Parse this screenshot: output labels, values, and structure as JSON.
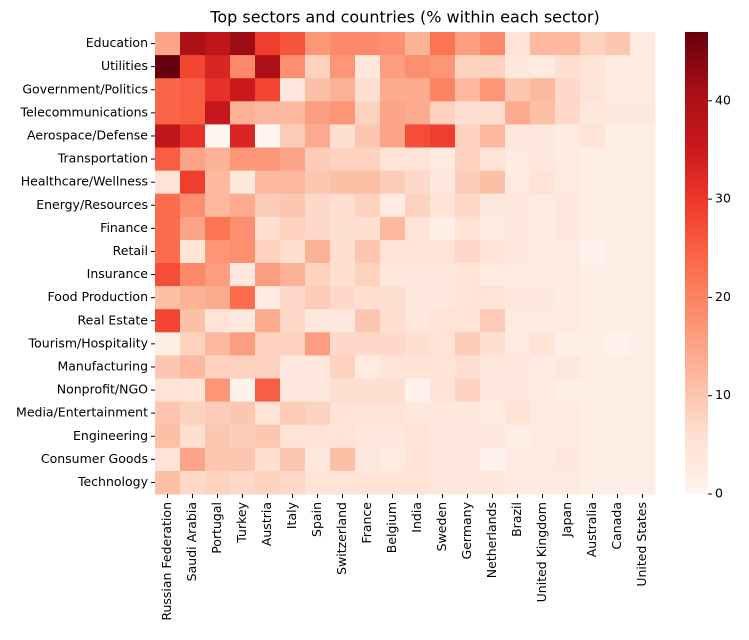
{
  "chart_data": {
    "type": "heatmap",
    "title": "Top sectors and countries (% within each sector)",
    "rows": [
      "Education",
      "Utilities",
      "Government/Politics",
      "Telecommunications",
      "Aerospace/Defense",
      "Transportation",
      "Healthcare/Wellness",
      "Energy/Resources",
      "Finance",
      "Retail",
      "Insurance",
      "Food Production",
      "Real Estate",
      "Tourism/Hospitality",
      "Manufacturing",
      "Nonprofit/NGO",
      "Media/Entertainment",
      "Engineering",
      "Consumer Goods",
      "Technology"
    ],
    "columns": [
      "Russian Federation",
      "Saudi Arabia",
      "Portugal",
      "Turkey",
      "Austria",
      "Italy",
      "Spain",
      "Switzerland",
      "France",
      "Belgium",
      "India",
      "Sweden",
      "Germany",
      "Netherlands",
      "Brazil",
      "United Kingdom",
      "Japan",
      "Australia",
      "Canada",
      "United States"
    ],
    "values": [
      [
        15,
        40,
        37,
        42,
        29,
        26,
        17,
        19,
        19,
        18,
        13,
        22,
        16,
        19,
        5,
        12,
        12,
        8,
        10,
        3
      ],
      [
        47,
        28,
        33,
        19,
        40,
        18,
        8,
        17,
        4,
        16,
        18,
        17,
        8,
        8,
        4,
        3,
        6,
        5,
        3,
        3
      ],
      [
        24,
        25,
        31,
        35,
        28,
        4,
        11,
        13,
        6,
        14,
        14,
        20,
        12,
        17,
        10,
        12,
        7,
        5,
        3,
        3
      ],
      [
        24,
        25,
        36,
        13,
        12,
        12,
        16,
        17,
        8,
        15,
        14,
        8,
        6,
        6,
        14,
        11,
        7,
        4,
        4,
        4
      ],
      [
        37,
        31,
        0,
        33,
        0,
        9,
        14,
        6,
        10,
        15,
        27,
        29,
        8,
        12,
        4,
        4,
        3,
        5,
        2,
        2
      ],
      [
        25,
        15,
        13,
        17,
        17,
        15,
        9,
        8,
        8,
        5,
        5,
        3,
        8,
        5,
        3,
        4,
        3,
        2,
        2,
        2
      ],
      [
        5,
        29,
        12,
        4,
        12,
        12,
        10,
        11,
        11,
        9,
        7,
        4,
        9,
        11,
        3,
        5,
        3,
        2,
        2,
        2
      ],
      [
        23,
        18,
        12,
        14,
        9,
        10,
        7,
        6,
        8,
        3,
        8,
        5,
        7,
        4,
        4,
        3,
        4,
        2,
        2,
        2
      ],
      [
        23,
        15,
        22,
        18,
        6,
        8,
        7,
        6,
        6,
        12,
        5,
        2,
        5,
        3,
        4,
        3,
        4,
        2,
        2,
        2
      ],
      [
        23,
        5,
        17,
        18,
        8,
        6,
        13,
        6,
        10,
        5,
        5,
        5,
        7,
        5,
        4,
        3,
        3,
        1,
        2,
        2
      ],
      [
        27,
        19,
        16,
        4,
        16,
        13,
        8,
        6,
        8,
        4,
        4,
        4,
        5,
        3,
        3,
        3,
        3,
        2,
        2,
        2
      ],
      [
        11,
        13,
        14,
        23,
        3,
        7,
        9,
        7,
        6,
        6,
        4,
        4,
        5,
        5,
        4,
        4,
        3,
        2,
        2,
        2
      ],
      [
        28,
        11,
        5,
        4,
        14,
        7,
        4,
        4,
        10,
        6,
        4,
        5,
        5,
        9,
        3,
        3,
        3,
        2,
        2,
        2
      ],
      [
        2,
        8,
        12,
        16,
        8,
        8,
        16,
        7,
        7,
        7,
        6,
        5,
        9,
        6,
        3,
        5,
        2,
        2,
        1,
        2
      ],
      [
        10,
        12,
        8,
        8,
        8,
        4,
        4,
        8,
        3,
        5,
        5,
        5,
        6,
        4,
        4,
        3,
        4,
        2,
        2,
        2
      ],
      [
        5,
        5,
        17,
        1,
        25,
        4,
        4,
        6,
        6,
        6,
        1,
        5,
        8,
        4,
        4,
        3,
        2,
        2,
        2,
        2
      ],
      [
        10,
        8,
        9,
        10,
        5,
        9,
        8,
        5,
        5,
        5,
        4,
        4,
        4,
        3,
        5,
        3,
        3,
        2,
        2,
        2
      ],
      [
        11,
        6,
        10,
        9,
        10,
        5,
        5,
        5,
        4,
        4,
        5,
        4,
        4,
        4,
        2,
        3,
        3,
        2,
        2,
        2
      ],
      [
        5,
        15,
        10,
        10,
        6,
        10,
        4,
        11,
        4,
        3,
        5,
        4,
        4,
        1,
        3,
        3,
        4,
        2,
        2,
        2
      ],
      [
        11,
        7,
        8,
        7,
        8,
        7,
        5,
        5,
        5,
        5,
        5,
        4,
        4,
        4,
        3,
        3,
        3,
        2,
        2,
        2
      ]
    ],
    "colormap": [
      "#fff5f0",
      "#fee0d2",
      "#fcbba1",
      "#fc9272",
      "#fb6a4a",
      "#ef3b2c",
      "#cb181d",
      "#a50f15",
      "#67000d"
    ],
    "clim": [
      0,
      47
    ],
    "cticks": [
      0,
      10,
      20,
      30,
      40
    ]
  }
}
